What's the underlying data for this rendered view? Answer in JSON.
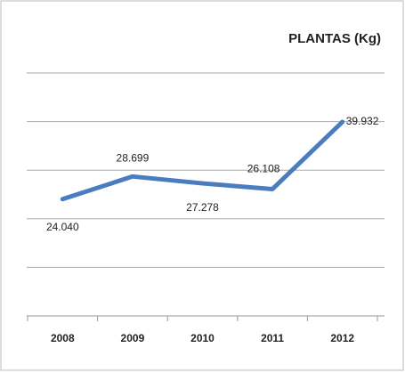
{
  "chart_data": {
    "type": "line",
    "title": "PLANTAS (Kg)",
    "categories": [
      "2008",
      "2009",
      "2010",
      "2011",
      "2012"
    ],
    "values": [
      24040,
      28699,
      27278,
      26108,
      39932
    ],
    "value_labels": [
      "24.040",
      "28.699",
      "27.278",
      "26.108",
      "39.932"
    ],
    "color": "#4a7cc0",
    "ylim": [
      0,
      50000
    ],
    "yticks": [
      0,
      10000,
      20000,
      30000,
      40000,
      50000
    ],
    "grid": true
  }
}
